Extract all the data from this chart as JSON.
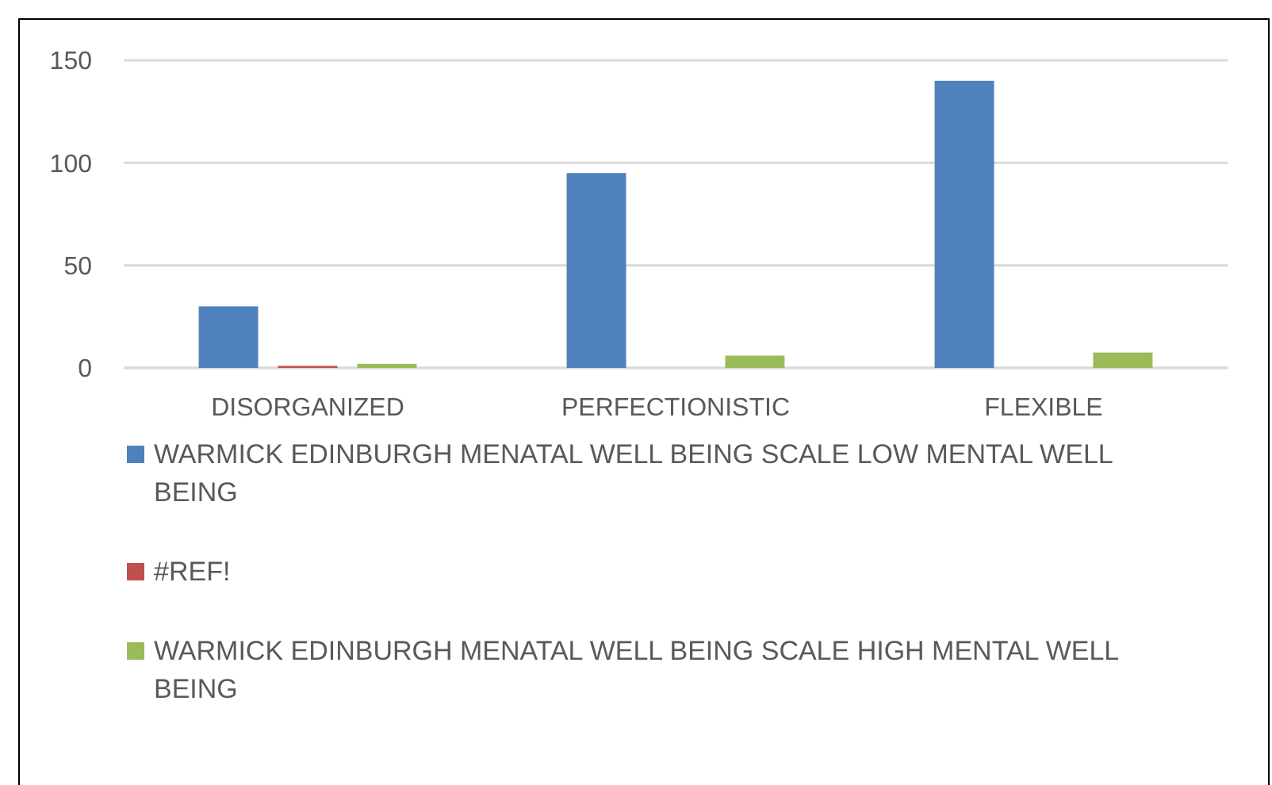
{
  "chart_data": {
    "type": "bar",
    "categories": [
      "DISORGANIZED",
      "PERFECTIONISTIC",
      "FLEXIBLE"
    ],
    "series": [
      {
        "name": "WARMICK EDINBURGH MENATAL WELL BEING SCALE LOW MENTAL WELL BEING",
        "color": "#4f81bd",
        "values": [
          30,
          95,
          140
        ]
      },
      {
        "name": "#REF!",
        "color": "#c0504d",
        "values": [
          1,
          null,
          null
        ]
      },
      {
        "name": "WARMICK EDINBURGH MENATAL WELL BEING SCALE HIGH MENTAL WELL BEING",
        "color": "#9bbb59",
        "values": [
          2,
          6,
          7.5
        ]
      }
    ],
    "ylim": [
      0,
      150
    ],
    "yticks": [
      0,
      50,
      100,
      150
    ],
    "grid": "y",
    "legend": "bottom"
  }
}
